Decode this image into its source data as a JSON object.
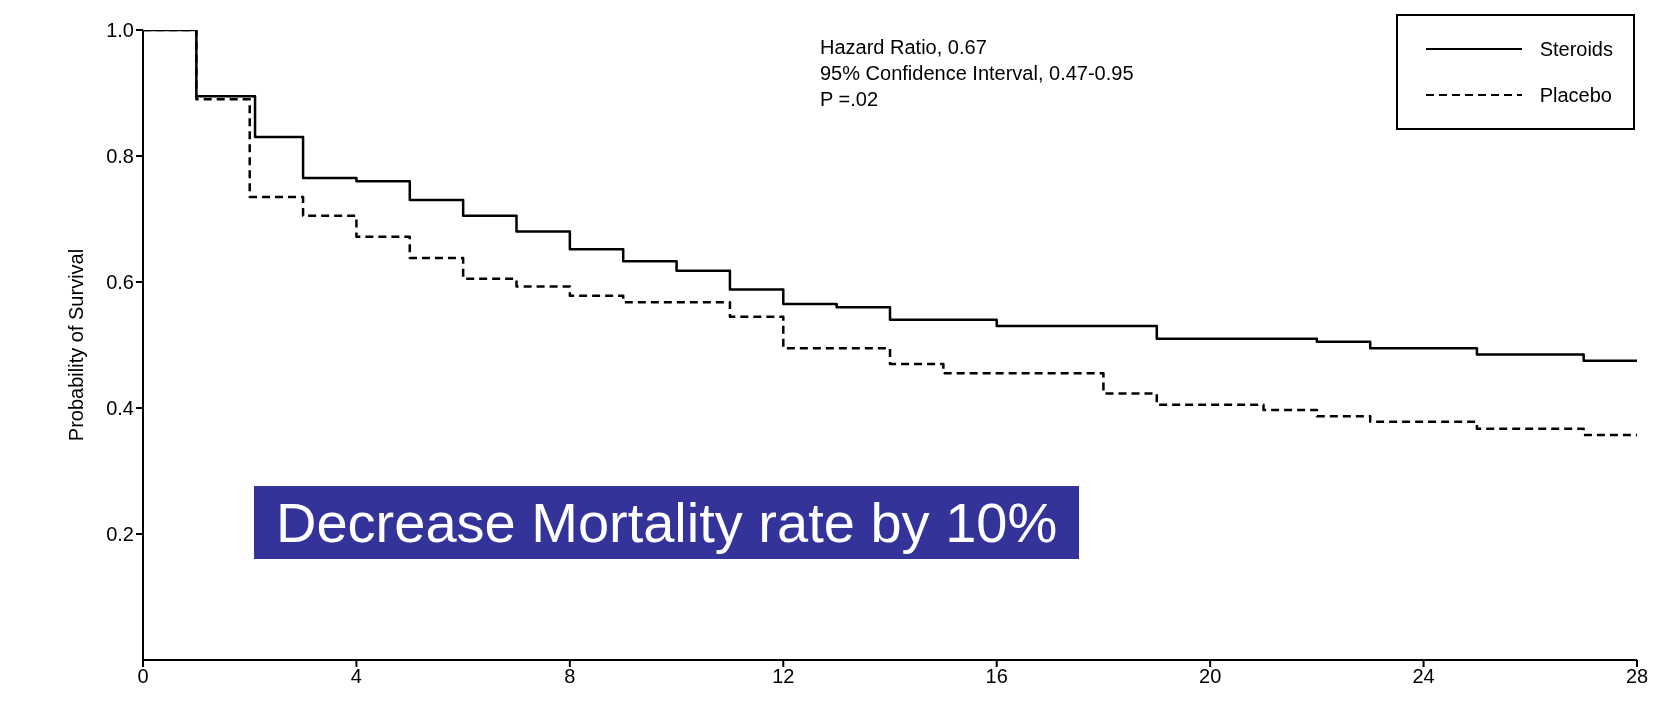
{
  "chart_data": {
    "type": "step",
    "ylabel": "Probability of Survival",
    "annotations": [
      "Hazard Ratio, 0.67",
      "95% Confidence Interval, 0.47-0.95",
      "P =.02",
      "Decrease Mortality rate by 10%"
    ],
    "series": [
      {
        "name": "Steroids",
        "color": "#000000",
        "line_style": "solid",
        "x": [
          0,
          1,
          2.1,
          3,
          4,
          5,
          6,
          7,
          8,
          9,
          10,
          11,
          12,
          13,
          14,
          16,
          19,
          22,
          23,
          25,
          27,
          28
        ],
        "values": [
          1.0,
          0.895,
          0.83,
          0.765,
          0.76,
          0.73,
          0.705,
          0.68,
          0.652,
          0.633,
          0.618,
          0.588,
          0.565,
          0.56,
          0.54,
          0.53,
          0.51,
          0.505,
          0.495,
          0.485,
          0.475,
          0.475
        ]
      },
      {
        "name": "Placebo",
        "color": "#000000",
        "line_style": "dashed",
        "x": [
          0,
          1,
          2,
          3,
          4,
          5,
          6,
          7,
          8,
          9,
          11,
          12,
          14,
          15,
          18,
          19,
          21,
          22,
          23,
          25,
          27,
          28
        ],
        "values": [
          1.0,
          0.89,
          0.735,
          0.705,
          0.672,
          0.638,
          0.605,
          0.593,
          0.578,
          0.568,
          0.545,
          0.495,
          0.47,
          0.455,
          0.423,
          0.405,
          0.397,
          0.387,
          0.378,
          0.367,
          0.357,
          0.357
        ]
      }
    ],
    "xlim": [
      0,
      28
    ],
    "xticks": [
      0,
      4,
      8,
      12,
      16,
      20,
      24,
      28
    ],
    "ylim": [
      0,
      1
    ],
    "yticks": [
      0.2,
      0.4,
      0.6,
      0.8,
      {
        "value": 1,
        "label": "1.0"
      }
    ],
    "legend": "top right",
    "marker": "none"
  }
}
